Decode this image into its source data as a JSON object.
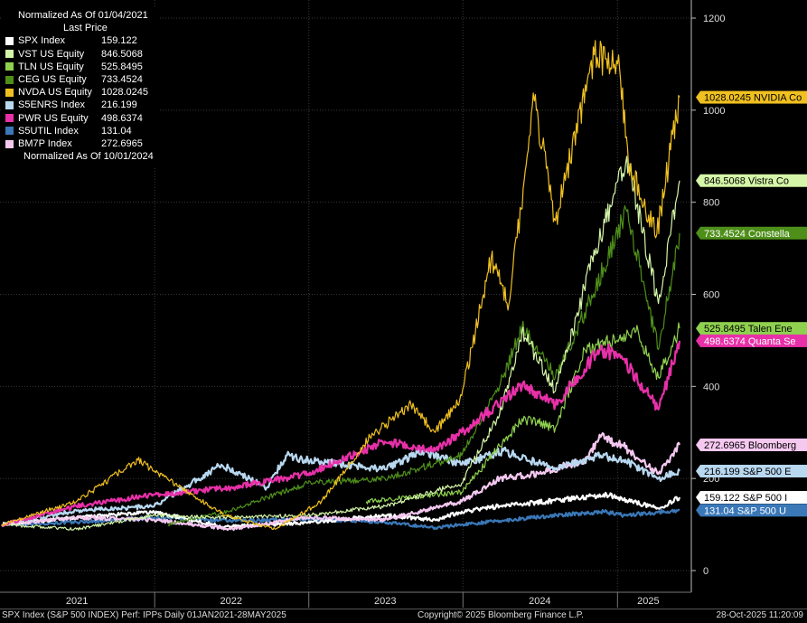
{
  "legend": {
    "header": "Normalized As Of 01/04/2021",
    "subheader": "Last Price",
    "footer": "Normalized As Of 10/01/2024"
  },
  "footer": {
    "left": "SPX Index (S&P 500 INDEX) Perf: IPPs Daily 01JAN2021-28MAY2025",
    "center": "Copyright© 2025 Bloomberg Finance L.P.",
    "right": "28-Oct-2025 11:20:09"
  },
  "chart_data": {
    "type": "line",
    "xlim": [
      "2021-01-04",
      "2025-05-28"
    ],
    "ylim": [
      0,
      1200
    ],
    "y_ticks": [
      0,
      200,
      400,
      600,
      800,
      1000,
      1200
    ],
    "x_ticks": [
      {
        "label": "2021",
        "date": "2021-07-01"
      },
      {
        "label": "2022",
        "date": "2022-07-01"
      },
      {
        "label": "2023",
        "date": "2023-07-01"
      },
      {
        "label": "2024",
        "date": "2024-07-01"
      },
      {
        "label": "2025",
        "date": "2025-03-15"
      }
    ],
    "x_dividers": [
      "2022-01-01",
      "2023-01-01",
      "2024-01-01",
      "2025-01-01"
    ],
    "series": [
      {
        "name": "SPX Index",
        "value": "159.122",
        "tag": "S&P 500 I",
        "color": "#ffffff",
        "tagText": "#000000",
        "points": [
          [
            "2021-01-04",
            100
          ],
          [
            "2021-06-30",
            115
          ],
          [
            "2021-12-31",
            127
          ],
          [
            "2022-06-16",
            95
          ],
          [
            "2022-12-30",
            104
          ],
          [
            "2023-06-30",
            120
          ],
          [
            "2023-10-27",
            110
          ],
          [
            "2023-12-29",
            128
          ],
          [
            "2024-03-28",
            140
          ],
          [
            "2024-07-16",
            150
          ],
          [
            "2024-12-06",
            165
          ],
          [
            "2025-04-08",
            135
          ],
          [
            "2025-05-28",
            159
          ]
        ]
      },
      {
        "name": "VST US Equity",
        "value": "846.5068",
        "tag": "Vistra Co",
        "color": "#d5f5a8",
        "tagText": "#000000",
        "points": [
          [
            "2021-01-04",
            100
          ],
          [
            "2021-06-30",
            90
          ],
          [
            "2021-12-31",
            120
          ],
          [
            "2022-06-30",
            115
          ],
          [
            "2022-12-30",
            120
          ],
          [
            "2023-06-30",
            140
          ],
          [
            "2023-12-29",
            190
          ],
          [
            "2024-03-28",
            340
          ],
          [
            "2024-05-20",
            520
          ],
          [
            "2024-08-07",
            390
          ],
          [
            "2024-11-11",
            700
          ],
          [
            "2025-01-23",
            900
          ],
          [
            "2025-04-08",
            580
          ],
          [
            "2025-05-28",
            847
          ]
        ]
      },
      {
        "name": "TLN US Equity",
        "value": "525.8495",
        "tag": "Talen Ene",
        "color": "#8fd14f",
        "tagText": "#000000",
        "points": [
          [
            "2023-05-17",
            150
          ],
          [
            "2023-12-29",
            170
          ],
          [
            "2024-03-28",
            270
          ],
          [
            "2024-05-20",
            330
          ],
          [
            "2024-08-07",
            310
          ],
          [
            "2024-10-15",
            480
          ],
          [
            "2024-12-31",
            500
          ],
          [
            "2025-02-14",
            520
          ],
          [
            "2025-04-08",
            420
          ],
          [
            "2025-05-28",
            526
          ]
        ]
      },
      {
        "name": "CEG US Equity",
        "value": "733.4524",
        "tag": "Constella",
        "color": "#4e8f1a",
        "tagText": "#ffffff",
        "points": [
          [
            "2022-02-02",
            100
          ],
          [
            "2022-06-30",
            130
          ],
          [
            "2022-12-30",
            190
          ],
          [
            "2023-06-30",
            200
          ],
          [
            "2023-12-29",
            250
          ],
          [
            "2024-03-28",
            400
          ],
          [
            "2024-05-20",
            530
          ],
          [
            "2024-08-07",
            420
          ],
          [
            "2024-10-15",
            560
          ],
          [
            "2025-01-23",
            780
          ],
          [
            "2025-04-08",
            480
          ],
          [
            "2025-05-28",
            733
          ]
        ]
      },
      {
        "name": "NVDA US Equity",
        "value": "1028.0245",
        "tag": "1028.0245 NVIDIA Co",
        "color": "#f0c020",
        "tagText": "#000000",
        "points": [
          [
            "2021-01-04",
            100
          ],
          [
            "2021-06-30",
            150
          ],
          [
            "2021-11-22",
            240
          ],
          [
            "2022-06-16",
            120
          ],
          [
            "2022-10-13",
            90
          ],
          [
            "2023-01-31",
            150
          ],
          [
            "2023-05-26",
            290
          ],
          [
            "2023-08-31",
            360
          ],
          [
            "2023-10-27",
            300
          ],
          [
            "2023-12-29",
            380
          ],
          [
            "2024-03-08",
            680
          ],
          [
            "2024-04-19",
            580
          ],
          [
            "2024-06-18",
            1020
          ],
          [
            "2024-08-07",
            760
          ],
          [
            "2024-11-07",
            1120
          ],
          [
            "2025-01-06",
            1090
          ],
          [
            "2025-01-27",
            880
          ],
          [
            "2025-04-04",
            730
          ],
          [
            "2025-05-28",
            1028
          ]
        ]
      },
      {
        "name": "S5ENRS Index",
        "value": "216.199",
        "tag": "S&P 500 E",
        "color": "#b8d8f0",
        "tagText": "#000000",
        "points": [
          [
            "2021-01-04",
            100
          ],
          [
            "2021-06-30",
            130
          ],
          [
            "2021-12-31",
            140
          ],
          [
            "2022-06-08",
            230
          ],
          [
            "2022-09-23",
            180
          ],
          [
            "2022-11-08",
            250
          ],
          [
            "2022-12-30",
            240
          ],
          [
            "2023-06-30",
            220
          ],
          [
            "2023-09-27",
            260
          ],
          [
            "2023-12-29",
            230
          ],
          [
            "2024-04-05",
            260
          ],
          [
            "2024-08-07",
            220
          ],
          [
            "2024-11-22",
            250
          ],
          [
            "2025-01-15",
            240
          ],
          [
            "2025-04-08",
            200
          ],
          [
            "2025-05-28",
            216
          ]
        ]
      },
      {
        "name": "PWR US Equity",
        "value": "498.6374",
        "tag": "Quanta Se",
        "color": "#e830a8",
        "tagText": "#ffffff",
        "points": [
          [
            "2021-01-04",
            100
          ],
          [
            "2021-06-30",
            140
          ],
          [
            "2021-12-31",
            165
          ],
          [
            "2022-06-30",
            180
          ],
          [
            "2022-12-30",
            210
          ],
          [
            "2023-06-30",
            280
          ],
          [
            "2023-10-27",
            260
          ],
          [
            "2023-12-29",
            300
          ],
          [
            "2024-05-20",
            400
          ],
          [
            "2024-08-07",
            360
          ],
          [
            "2024-11-22",
            480
          ],
          [
            "2025-01-06",
            470
          ],
          [
            "2025-04-08",
            350
          ],
          [
            "2025-05-28",
            499
          ]
        ]
      },
      {
        "name": "S5UTIL Index",
        "value": "131.04",
        "tag": "S&P 500 U",
        "color": "#3a78b8",
        "tagText": "#ffffff",
        "points": [
          [
            "2021-01-04",
            100
          ],
          [
            "2021-06-30",
            105
          ],
          [
            "2021-12-31",
            115
          ],
          [
            "2022-06-30",
            108
          ],
          [
            "2022-12-30",
            112
          ],
          [
            "2023-06-30",
            105
          ],
          [
            "2023-10-27",
            93
          ],
          [
            "2023-12-29",
            100
          ],
          [
            "2024-03-28",
            108
          ],
          [
            "2024-07-16",
            118
          ],
          [
            "2024-11-29",
            128
          ],
          [
            "2025-01-15",
            120
          ],
          [
            "2025-05-28",
            131
          ]
        ]
      },
      {
        "name": "BM7P Index",
        "value": "272.6965",
        "tag": "Bloomberg",
        "color": "#f5c8f0",
        "tagText": "#000000",
        "points": [
          [
            "2021-01-04",
            100
          ],
          [
            "2021-06-30",
            115
          ],
          [
            "2021-12-31",
            110
          ],
          [
            "2022-06-30",
            90
          ],
          [
            "2022-12-30",
            115
          ],
          [
            "2023-06-30",
            110
          ],
          [
            "2023-12-29",
            150
          ],
          [
            "2024-03-28",
            200
          ],
          [
            "2024-06-28",
            210
          ],
          [
            "2024-10-15",
            240
          ],
          [
            "2024-11-22",
            290
          ],
          [
            "2025-01-15",
            270
          ],
          [
            "2025-04-08",
            210
          ],
          [
            "2025-05-28",
            273
          ]
        ]
      }
    ]
  }
}
